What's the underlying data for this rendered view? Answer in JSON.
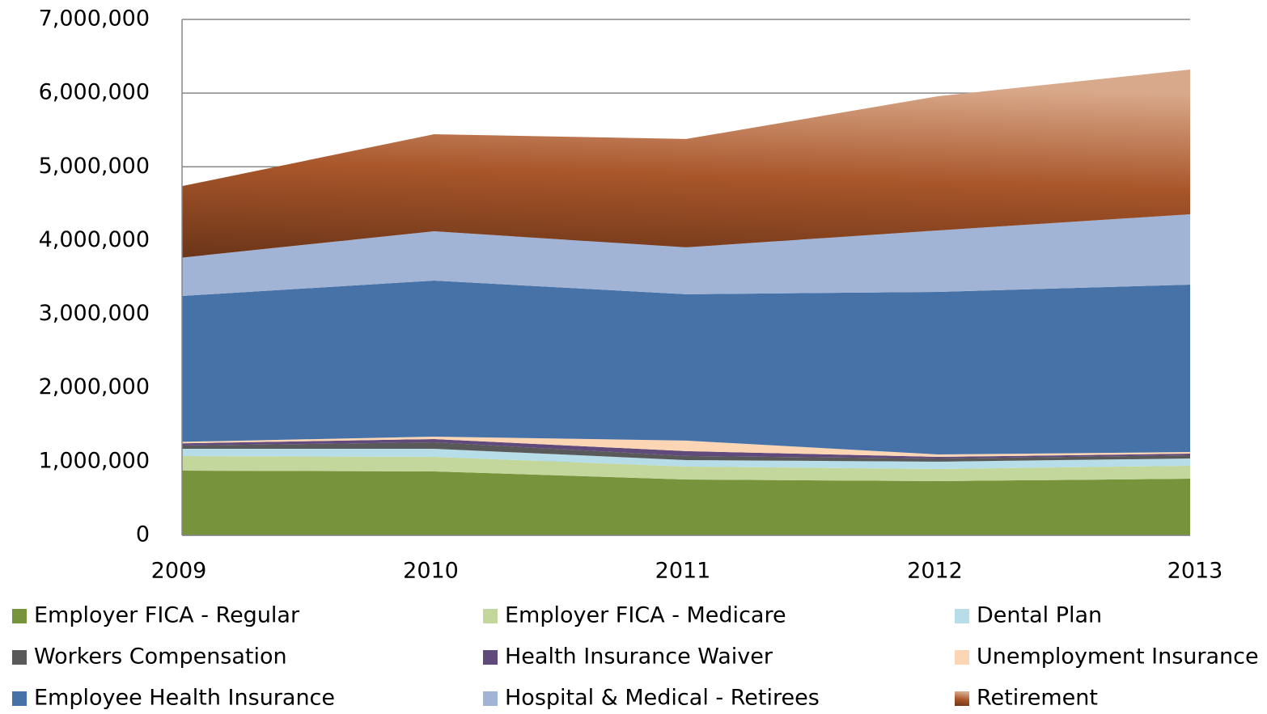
{
  "chart_data": {
    "type": "area",
    "categories": [
      "2009",
      "2010",
      "2011",
      "2012",
      "2013"
    ],
    "series": [
      {
        "name": "Employer FICA - Regular",
        "color": "#77933c",
        "values": [
          878000,
          867000,
          757000,
          735000,
          768000
        ]
      },
      {
        "name": "Employer FICA - Medicare",
        "color": "#c3d69b",
        "values": [
          197000,
          197000,
          176000,
          165000,
          176000
        ]
      },
      {
        "name": "Dental Plan",
        "color": "#b7dee8",
        "values": [
          99000,
          110000,
          88000,
          100000,
          98000
        ]
      },
      {
        "name": "Workers Compensation",
        "color": "#595959",
        "values": [
          44000,
          88000,
          55000,
          42000,
          44000
        ]
      },
      {
        "name": "Health Insurance Waiver",
        "color": "#604a7b",
        "values": [
          30000,
          44000,
          66000,
          22000,
          22000
        ]
      },
      {
        "name": "Unemployment Insurance",
        "color": "#fcd5b5",
        "values": [
          20000,
          33000,
          143000,
          33000,
          22000
        ]
      },
      {
        "name": "Employee Health Insurance",
        "color": "#4672a8",
        "values": [
          1980000,
          2117000,
          1986000,
          2206000,
          2271000
        ]
      },
      {
        "name": "Hospital & Medical - Retirees",
        "color": "#a2b4d6",
        "values": [
          520000,
          669000,
          636000,
          834000,
          955000
        ]
      },
      {
        "name": "Retirement",
        "color": "#a9562a",
        "values": [
          970000,
          1317000,
          1470000,
          1821000,
          1964000
        ]
      }
    ],
    "ylim": [
      0,
      7000000
    ],
    "yticks": [
      0,
      {
        "value": 1000000,
        "label": "1,000,000"
      },
      {
        "value": 2000000,
        "label": "2,000,000"
      },
      {
        "value": 3000000,
        "label": "3,000,000"
      },
      {
        "value": 4000000,
        "label": "4,000,000"
      },
      {
        "value": 5000000,
        "label": "5,000,000"
      },
      {
        "value": 6000000,
        "label": "6,000,000"
      },
      {
        "value": 7000000,
        "label": "7,000,000"
      }
    ],
    "grid": true,
    "stacked": true,
    "legend": "bottom"
  }
}
